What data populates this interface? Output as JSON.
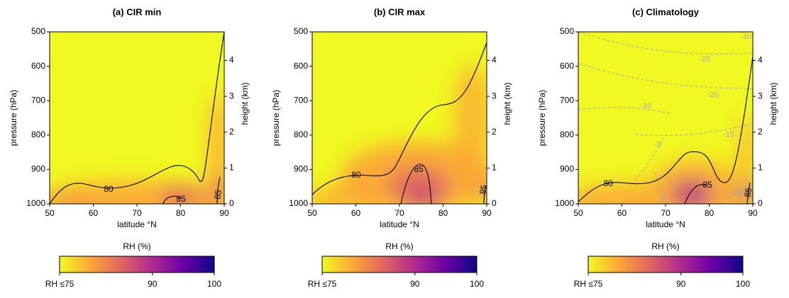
{
  "chart_data": [
    {
      "type": "contour",
      "title": "(a) CIR min",
      "xlabel": "latitude °N",
      "ylabel": "pressure (hPa)",
      "y2label": "height (km)",
      "xlim": [
        50,
        90
      ],
      "xticks": [
        50,
        60,
        70,
        80,
        90
      ],
      "ylim": [
        1000,
        500
      ],
      "yticks": [
        500,
        600,
        700,
        800,
        900,
        1000
      ],
      "y2lim": [
        0,
        4.8
      ],
      "y2ticks": [
        0,
        1,
        2,
        3,
        4
      ],
      "contours": [
        {
          "level": 80
        },
        {
          "level": 85
        },
        {
          "level": 85
        }
      ],
      "colorbar": {
        "label": "RH (%)",
        "lim": [
          75,
          100
        ],
        "ticks": [
          {
            "value": 75,
            "label": "RH ≤75"
          },
          90,
          100
        ],
        "colors": [
          "#f0f921",
          "#fca636",
          "#e16462",
          "#b12a90",
          "#6a00a8",
          "#0d0887"
        ]
      }
    },
    {
      "type": "contour",
      "title": "(b) CIR max",
      "xlabel": "latitude °N",
      "ylabel": "pressure (hPa)",
      "y2label": "height (km)",
      "xlim": [
        50,
        90
      ],
      "xticks": [
        50,
        60,
        70,
        80,
        90
      ],
      "ylim": [
        1000,
        500
      ],
      "yticks": [
        500,
        600,
        700,
        800,
        900,
        1000
      ],
      "y2lim": [
        0,
        4.8
      ],
      "y2ticks": [
        0,
        1,
        2,
        3,
        4
      ],
      "contours": [
        {
          "level": 80
        },
        {
          "level": 85
        },
        {
          "level": 85
        }
      ],
      "colorbar": {
        "label": "RH (%)",
        "lim": [
          75,
          100
        ],
        "ticks": [
          {
            "value": 75,
            "label": "RH ≤75"
          },
          90,
          100
        ],
        "colors": [
          "#f0f921",
          "#fca636",
          "#e16462",
          "#b12a90",
          "#6a00a8",
          "#0d0887"
        ]
      }
    },
    {
      "type": "contour",
      "title": "(c) Climatology",
      "xlabel": "latitude °N",
      "ylabel": "pressure (hPa)",
      "y2label": "height (km)",
      "xlim": [
        50,
        90
      ],
      "xticks": [
        50,
        60,
        70,
        80,
        90
      ],
      "ylim": [
        1000,
        500
      ],
      "yticks": [
        500,
        600,
        700,
        800,
        900,
        1000
      ],
      "y2lim": [
        0,
        4.8
      ],
      "y2ticks": [
        0,
        1,
        2,
        3,
        4
      ],
      "contours": [
        {
          "level": 80
        },
        {
          "level": 85
        },
        {
          "level": 85
        }
      ],
      "temperature_contours": [
        {
          "level": -30
        },
        {
          "level": -25
        },
        {
          "level": -20
        },
        {
          "level": -10
        },
        {
          "level": -15
        },
        {
          "level": -5
        },
        {
          "level": -15
        },
        {
          "level": 0
        }
      ],
      "colorbar": {
        "label": "RH (%)",
        "lim": [
          75,
          100
        ],
        "ticks": [
          {
            "value": 75,
            "label": "RH ≤75"
          },
          90,
          100
        ],
        "colors": [
          "#f0f921",
          "#fca636",
          "#e16462",
          "#b12a90",
          "#6a00a8",
          "#0d0887"
        ]
      }
    }
  ]
}
